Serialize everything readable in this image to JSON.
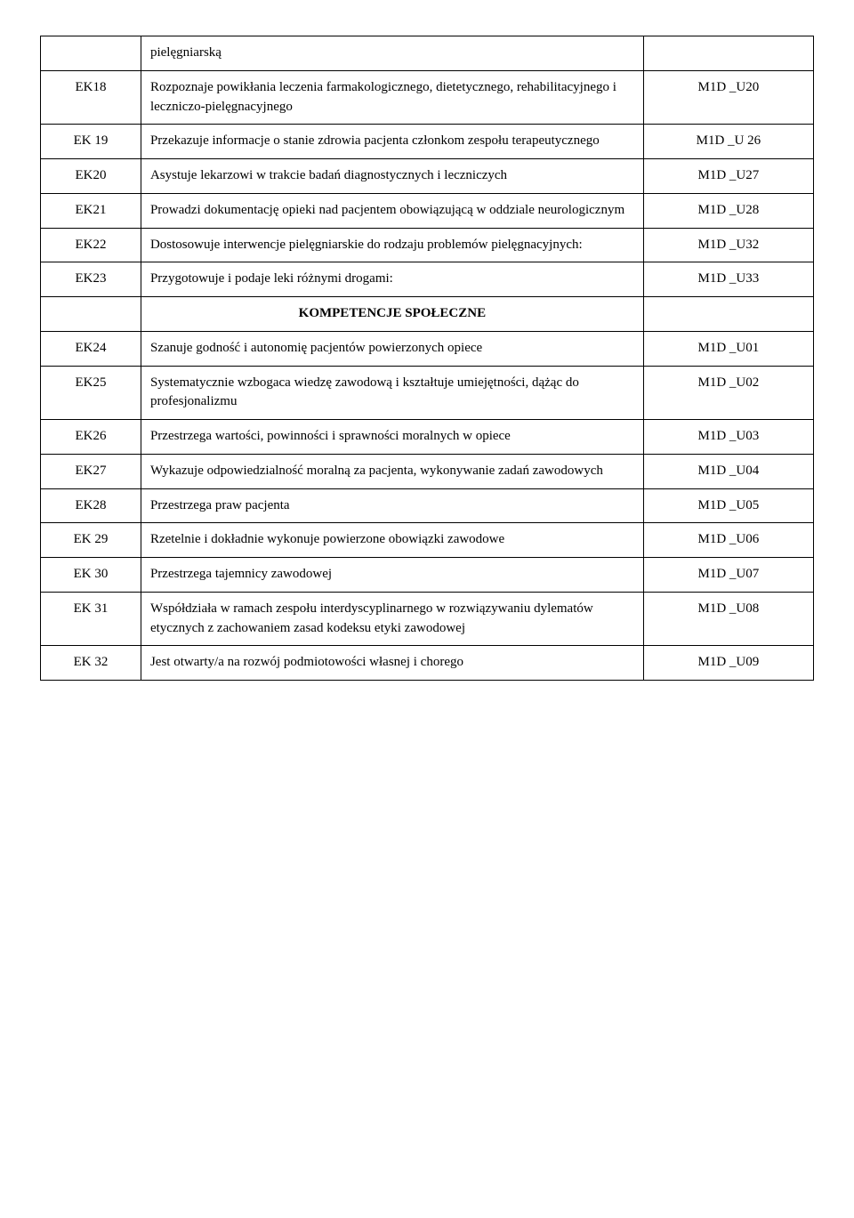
{
  "rows": [
    {
      "code": "",
      "desc": "pielęgniarską",
      "ref": ""
    },
    {
      "code": "EK18",
      "desc": "Rozpoznaje powikłania leczenia farmakologicznego, dietetycznego, rehabilitacyjnego i leczniczo-pielęgnacyjnego",
      "ref": "M1D _U20"
    },
    {
      "code": "EK 19",
      "desc": "Przekazuje informacje o stanie zdrowia pacjenta członkom zespołu terapeutycznego",
      "ref": "M1D _U 26"
    },
    {
      "code": "EK20",
      "desc": "Asystuje lekarzowi w trakcie badań diagnostycznych i leczniczych",
      "ref": "M1D _U27"
    },
    {
      "code": "EK21",
      "desc": "Prowadzi dokumentację opieki nad pacjentem obowiązującą w oddziale neurologicznym",
      "ref": "M1D _U28"
    },
    {
      "code": "EK22",
      "desc": "Dostosowuje interwencje pielęgniarskie do rodzaju problemów pielęgnacyjnych:",
      "ref": "M1D _U32"
    },
    {
      "code": "EK23",
      "desc": "Przygotowuje i podaje leki różnymi drogami:",
      "ref": "M1D _U33"
    },
    {
      "code": "",
      "desc": "KOMPETENCJE SPOŁECZNE",
      "ref": "",
      "heading": true
    },
    {
      "code": "EK24",
      "desc": "Szanuje godność i autonomię pacjentów powierzonych opiece",
      "ref": "M1D _U01"
    },
    {
      "code": "EK25",
      "desc": "Systematycznie wzbogaca wiedzę zawodową i kształtuje umiejętności, dążąc do profesjonalizmu",
      "ref": "M1D _U02"
    },
    {
      "code": "EK26",
      "desc": "Przestrzega wartości, powinności i sprawności moralnych w opiece",
      "ref": "M1D _U03"
    },
    {
      "code": "EK27",
      "desc": "Wykazuje odpowiedzialność moralną za pacjenta, wykonywanie zadań zawodowych",
      "ref": "M1D _U04"
    },
    {
      "code": "EK28",
      "desc": "Przestrzega praw pacjenta",
      "ref": "M1D _U05"
    },
    {
      "code": "EK 29",
      "desc": "Rzetelnie i dokładnie wykonuje powierzone obowiązki zawodowe",
      "ref": "M1D _U06"
    },
    {
      "code": "EK 30",
      "desc": "Przestrzega tajemnicy zawodowej",
      "ref": "M1D _U07"
    },
    {
      "code": "EK 31",
      "desc": "Współdziała w ramach zespołu interdyscyplinarnego w rozwiązywaniu dylematów etycznych z zachowaniem zasad kodeksu etyki zawodowej",
      "ref": "M1D _U08"
    },
    {
      "code": "EK 32",
      "desc": "Jest otwarty/a na rozwój podmiotowości własnej i chorego",
      "ref": "M1D _U09"
    }
  ]
}
